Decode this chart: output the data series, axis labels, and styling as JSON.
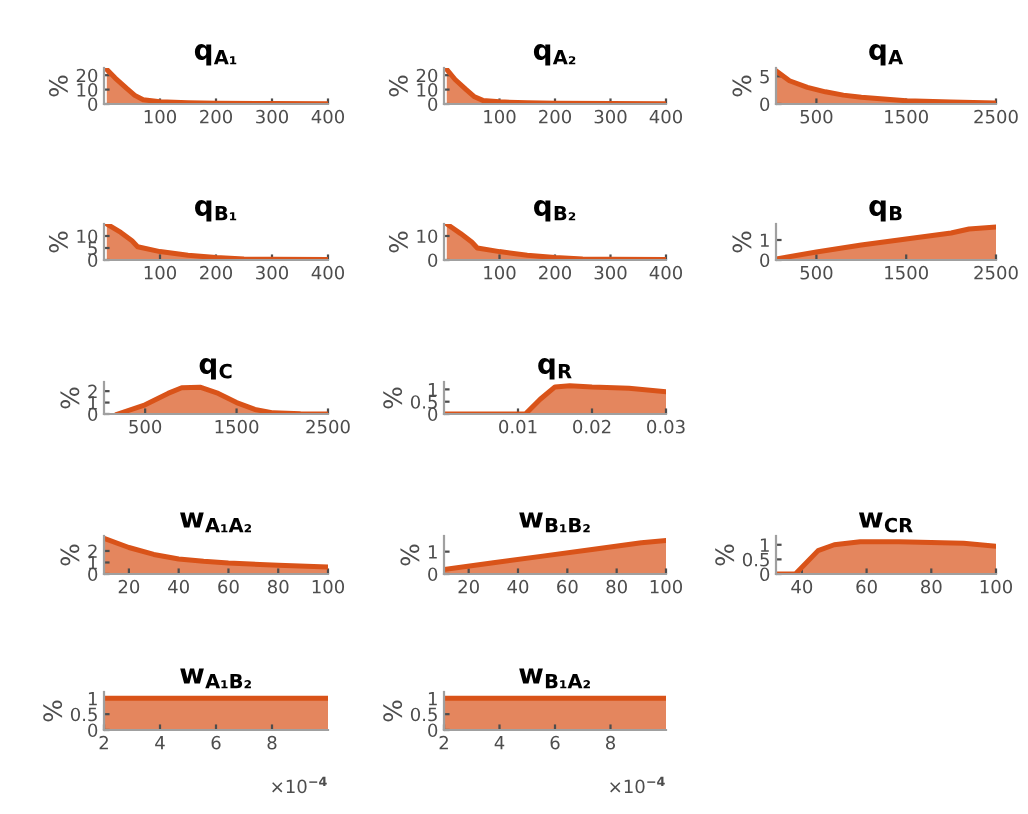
{
  "chart_data": [
    {
      "type": "area",
      "title": "q$_{A₁}$",
      "ylabel": "%",
      "x": [
        5,
        20,
        40,
        55,
        70,
        100,
        150,
        200,
        300,
        400
      ],
      "values": [
        24,
        18,
        11,
        6,
        3,
        1.5,
        0.8,
        0.5,
        0.3,
        0.2
      ],
      "color": "#d95319",
      "xlim": [
        0,
        400
      ],
      "ylim": [
        0,
        25
      ],
      "xticks": [
        100,
        200,
        300,
        400
      ],
      "yticks": [
        0,
        10,
        20
      ]
    },
    {
      "type": "area",
      "title": "q$_{A₂}$",
      "ylabel": "%",
      "x": [
        5,
        20,
        40,
        55,
        70,
        100,
        150,
        200,
        300,
        400
      ],
      "values": [
        24,
        17,
        10,
        5,
        2.5,
        1.5,
        0.8,
        0.5,
        0.3,
        0.2
      ],
      "color": "#d95319",
      "xlim": [
        0,
        400
      ],
      "ylim": [
        0,
        25
      ],
      "xticks": [
        100,
        200,
        300,
        400
      ],
      "yticks": [
        0,
        10,
        20
      ]
    },
    {
      "type": "area",
      "title": "q$_{A}$",
      "ylabel": "%",
      "x": [
        50,
        200,
        400,
        600,
        800,
        1000,
        1500,
        2000,
        2500
      ],
      "values": [
        6,
        4.2,
        3,
        2.2,
        1.6,
        1.2,
        0.6,
        0.35,
        0.2
      ],
      "color": "#d95319",
      "xlim": [
        50,
        2500
      ],
      "ylim": [
        0,
        6.5
      ],
      "xticks": [
        500,
        1500,
        2500
      ],
      "yticks": [
        0,
        5
      ]
    },
    {
      "type": "area",
      "title": "q$_{B₁}$",
      "ylabel": "%",
      "x": [
        5,
        30,
        50,
        60,
        100,
        150,
        200,
        250,
        300,
        400
      ],
      "values": [
        15,
        11.5,
        8,
        5.5,
        3.5,
        2,
        1,
        0.4,
        0.3,
        0.2
      ],
      "color": "#d95319",
      "xlim": [
        0,
        400
      ],
      "ylim": [
        0,
        15
      ],
      "xticks": [
        100,
        200,
        300,
        400
      ],
      "yticks": [
        0,
        5,
        10
      ]
    },
    {
      "type": "area",
      "title": "q$_{B₂}$",
      "ylabel": "%",
      "x": [
        5,
        30,
        50,
        60,
        100,
        150,
        200,
        250,
        300,
        400
      ],
      "values": [
        15,
        11,
        7.5,
        5,
        3.5,
        2,
        1,
        0.4,
        0.3,
        0.2
      ],
      "color": "#d95319",
      "xlim": [
        0,
        400
      ],
      "ylim": [
        0,
        15
      ],
      "xticks": [
        100,
        200,
        300,
        400
      ],
      "yticks": [
        0,
        10
      ]
    },
    {
      "type": "area",
      "title": "q$_{B}$",
      "ylabel": "%",
      "x": [
        50,
        500,
        1000,
        1500,
        2000,
        2200,
        2500
      ],
      "values": [
        0.05,
        0.4,
        0.75,
        1.05,
        1.35,
        1.55,
        1.65
      ],
      "color": "#d95319",
      "xlim": [
        50,
        2500
      ],
      "ylim": [
        0,
        1.8
      ],
      "xticks": [
        500,
        1500,
        2500
      ],
      "yticks": [
        0,
        1
      ]
    },
    {
      "type": "area",
      "title": "q$_{C}$",
      "ylabel": "%",
      "x": [
        200,
        500,
        750,
        900,
        1100,
        1300,
        1500,
        1700,
        1900,
        2200,
        2500
      ],
      "values": [
        0,
        0.8,
        1.8,
        2.3,
        2.35,
        1.8,
        1,
        0.4,
        0.1,
        0.02,
        0
      ],
      "color": "#d95319",
      "xlim": [
        50,
        2500
      ],
      "ylim": [
        0,
        2.8
      ],
      "xticks": [
        500,
        1500,
        2500
      ],
      "yticks": [
        0,
        1,
        2
      ]
    },
    {
      "type": "area",
      "title": "q$_{R}$",
      "ylabel": "%",
      "x": [
        0,
        0.011,
        0.013,
        0.015,
        0.017,
        0.02,
        0.025,
        0.03
      ],
      "values": [
        0,
        0,
        0.6,
        1.1,
        1.15,
        1.1,
        1.05,
        0.9
      ],
      "color": "#d95319",
      "xlim": [
        0,
        0.03
      ],
      "ylim": [
        0,
        1.3
      ],
      "xticks": [
        0.01,
        0.02,
        0.03
      ],
      "yticks": [
        0,
        0.5,
        1
      ]
    },
    {
      "type": "area",
      "title": "w$_{A₁A₂}$",
      "ylabel": "%",
      "x": [
        10,
        20,
        30,
        40,
        50,
        60,
        80,
        100
      ],
      "values": [
        3.1,
        2.3,
        1.7,
        1.3,
        1.1,
        0.95,
        0.75,
        0.6
      ],
      "color": "#d95319",
      "xlim": [
        10,
        100
      ],
      "ylim": [
        0,
        3.3
      ],
      "xticks": [
        20,
        40,
        60,
        80,
        100
      ],
      "yticks": [
        0,
        1,
        2
      ]
    },
    {
      "type": "area",
      "title": "w$_{B₁B₂}$",
      "ylabel": "%",
      "x": [
        10,
        30,
        50,
        70,
        90,
        100
      ],
      "values": [
        0.2,
        0.5,
        0.8,
        1.1,
        1.4,
        1.5
      ],
      "color": "#d95319",
      "xlim": [
        10,
        100
      ],
      "ylim": [
        0,
        1.7
      ],
      "xticks": [
        20,
        40,
        60,
        80,
        100
      ],
      "yticks": [
        0,
        1
      ]
    },
    {
      "type": "area",
      "title": "w$_{CR}$",
      "ylabel": "%",
      "x": [
        32,
        38,
        45,
        50,
        58,
        70,
        90,
        100
      ],
      "values": [
        0,
        0,
        0.8,
        1,
        1.1,
        1.1,
        1.05,
        0.95
      ],
      "color": "#d95319",
      "xlim": [
        32,
        100
      ],
      "ylim": [
        0,
        1.3
      ],
      "xticks": [
        40,
        60,
        80,
        100
      ],
      "yticks": [
        0,
        0.5,
        1
      ]
    },
    {
      "type": "area",
      "title": "w$_{A₁B₂}$",
      "ylabel": "%",
      "x": [
        2,
        3,
        5,
        7,
        9,
        10
      ],
      "values": [
        1,
        1,
        1,
        1,
        1,
        1
      ],
      "color": "#d95319",
      "xlim": [
        2,
        10
      ],
      "ylim": [
        0,
        1.2
      ],
      "xticks": [
        2,
        4,
        6,
        8
      ],
      "yticks": [
        0,
        0.5,
        1
      ],
      "annotations": [
        "×10$^{−4}$"
      ]
    },
    {
      "type": "area",
      "title": "w$_{B₁A₂}$",
      "ylabel": "%",
      "x": [
        2,
        3,
        5,
        7,
        9,
        10
      ],
      "values": [
        1,
        1,
        1,
        1,
        1,
        1
      ],
      "color": "#d95319",
      "xlim": [
        2,
        10
      ],
      "ylim": [
        0,
        1.2
      ],
      "xticks": [
        2,
        4,
        6,
        8
      ],
      "yticks": [
        0,
        0.5,
        1
      ],
      "annotations": [
        "×10$^{−4}$"
      ]
    }
  ]
}
